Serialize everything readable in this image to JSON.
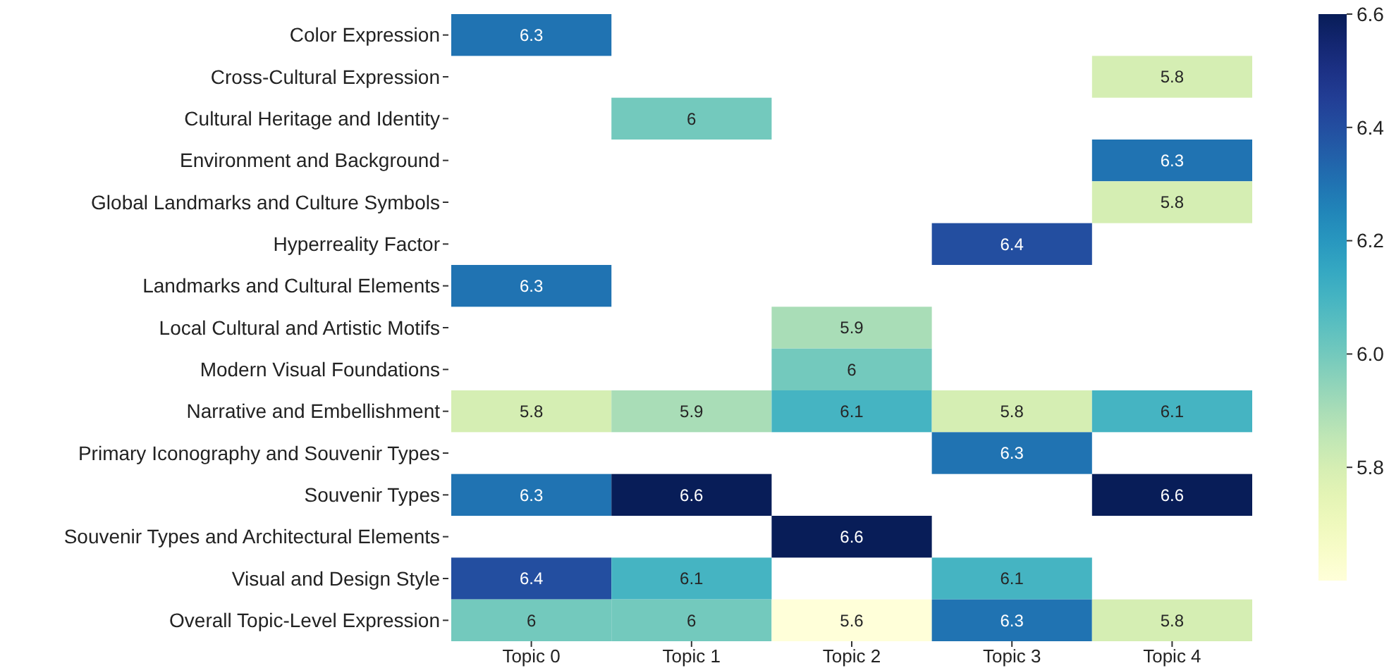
{
  "chart_data": {
    "type": "heatmap",
    "categories": [
      "Topic 0",
      "Topic 1",
      "Topic 2",
      "Topic 3",
      "Topic 4"
    ],
    "y_categories": [
      "Color Expression",
      "Cross-Cultural Expression",
      "Cultural Heritage and Identity",
      "Environment and Background",
      "Global Landmarks and Culture Symbols",
      "Hyperreality Factor",
      "Landmarks and Cultural Elements",
      "Local Cultural and Artistic Motifs",
      "Modern Visual Foundations",
      "Narrative and Embellishment",
      "Primary Iconography and Souvenir Types",
      "Souvenir Types",
      "Souvenir Types and Architectural Elements",
      "Visual and Design Style",
      "Overall Topic-Level Expression"
    ],
    "cells": [
      [
        6.3,
        null,
        null,
        null,
        null
      ],
      [
        null,
        null,
        null,
        null,
        5.8
      ],
      [
        null,
        6,
        null,
        null,
        null
      ],
      [
        null,
        null,
        null,
        null,
        6.3
      ],
      [
        null,
        null,
        null,
        null,
        5.8
      ],
      [
        null,
        null,
        null,
        6.4,
        null
      ],
      [
        6.3,
        null,
        null,
        null,
        null
      ],
      [
        null,
        null,
        5.9,
        null,
        null
      ],
      [
        null,
        null,
        6,
        null,
        null
      ],
      [
        5.8,
        5.9,
        6.1,
        5.8,
        6.1
      ],
      [
        null,
        null,
        null,
        6.3,
        null
      ],
      [
        6.3,
        6.6,
        null,
        null,
        6.6
      ],
      [
        null,
        null,
        6.6,
        null,
        null
      ],
      [
        6.4,
        6.1,
        null,
        6.1,
        null
      ],
      [
        6,
        6,
        5.6,
        6.3,
        5.8
      ]
    ],
    "data_labels": true,
    "clim": [
      5.6,
      6.6
    ],
    "cticks": [
      5.8,
      {
        "value": 6,
        "label": "6.0"
      },
      6.2,
      6.4,
      6.6
    ]
  }
}
